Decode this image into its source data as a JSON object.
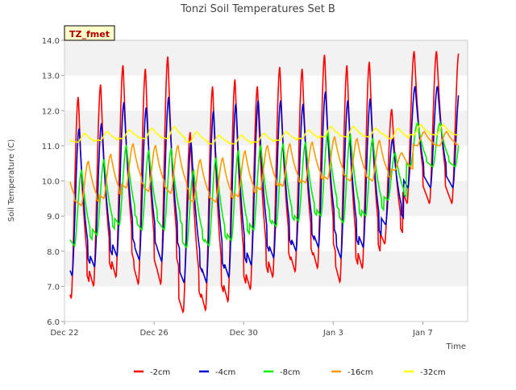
{
  "chart_data": {
    "type": "line",
    "title": "Tonzi Soil Temperatures Set B",
    "xlabel": "Time",
    "ylabel": "Soil Temperature (C)",
    "badge": "TZ_fmet",
    "ylim": [
      6.0,
      14.0
    ],
    "yticks": [
      "6.0",
      "7.0",
      "8.0",
      "9.0",
      "10.0",
      "11.0",
      "12.0",
      "13.0",
      "14.0"
    ],
    "xlim_days": [
      0,
      18
    ],
    "xticks": [
      {
        "day": 0,
        "label": "Dec 22"
      },
      {
        "day": 4,
        "label": "Dec 26"
      },
      {
        "day": 8,
        "label": "Dec 30"
      },
      {
        "day": 12,
        "label": "Jan 3"
      },
      {
        "day": 16,
        "label": "Jan 7"
      }
    ],
    "grid": "horizontal bands",
    "legend_position": "bottom",
    "colors": {
      "-2cm": "#ff0000",
      "-4cm": "#0000cc",
      "-8cm": "#00ee00",
      "-16cm": "#ff9900",
      "-32cm": "#ffff00"
    },
    "series": [
      {
        "name": "-2cm",
        "color": "#ff0000",
        "day_offset": 0.0,
        "minima": [
          6.65,
          7.0,
          7.25,
          7.05,
          7.05,
          6.25,
          6.3,
          6.55,
          6.9,
          7.25,
          7.4,
          7.5,
          7.1,
          7.5,
          8.2,
          9.35
        ],
        "maxima": [
          12.4,
          12.75,
          13.3,
          13.2,
          13.55,
          11.4,
          12.7,
          12.9,
          12.7,
          13.25,
          13.2,
          13.6,
          13.3,
          13.4,
          12.05,
          13.7
        ]
      },
      {
        "name": "-4cm",
        "color": "#0000cc",
        "day_offset": 0.04,
        "minima": [
          7.3,
          7.55,
          7.85,
          7.75,
          7.7,
          7.1,
          7.1,
          7.25,
          7.6,
          7.8,
          8.0,
          8.1,
          7.8,
          8.1,
          8.75,
          9.8
        ],
        "maxima": [
          11.5,
          11.65,
          12.25,
          12.1,
          12.4,
          11.1,
          12.0,
          12.2,
          12.3,
          12.3,
          12.2,
          12.55,
          12.3,
          12.35,
          11.2,
          12.7
        ]
      },
      {
        "name": "-8cm",
        "color": "#00ee00",
        "day_offset": 0.15,
        "minima": [
          8.15,
          8.45,
          8.75,
          8.6,
          8.6,
          8.1,
          8.15,
          8.3,
          8.6,
          8.7,
          8.85,
          9.0,
          8.8,
          9.0,
          9.45,
          10.4
        ],
        "maxima": [
          10.3,
          10.6,
          11.0,
          10.85,
          10.9,
          10.3,
          10.65,
          10.85,
          11.0,
          11.05,
          11.1,
          11.4,
          11.3,
          11.2,
          10.8,
          11.65
        ]
      },
      {
        "name": "-16cm",
        "color": "#ff9900",
        "day_offset": 0.45,
        "minima": [
          9.3,
          9.5,
          9.8,
          9.7,
          9.65,
          9.4,
          9.4,
          9.55,
          9.75,
          9.85,
          9.95,
          10.05,
          10.0,
          10.0,
          10.3,
          11.0
        ],
        "maxima": [
          10.55,
          10.75,
          11.05,
          11.0,
          11.0,
          10.6,
          10.65,
          10.85,
          11.0,
          11.05,
          11.1,
          11.25,
          11.2,
          11.15,
          10.8,
          11.4
        ]
      },
      {
        "name": "-32cm",
        "color": "#ffff00",
        "day_offset": 0.3,
        "minima": [
          11.1,
          11.15,
          11.2,
          11.2,
          11.2,
          11.1,
          11.05,
          11.05,
          11.1,
          11.15,
          11.2,
          11.25,
          11.25,
          11.25,
          11.2,
          11.3
        ],
        "maxima": [
          11.35,
          11.4,
          11.45,
          11.5,
          11.55,
          11.4,
          11.3,
          11.3,
          11.35,
          11.4,
          11.45,
          11.55,
          11.55,
          11.5,
          11.5,
          11.6
        ]
      }
    ]
  }
}
